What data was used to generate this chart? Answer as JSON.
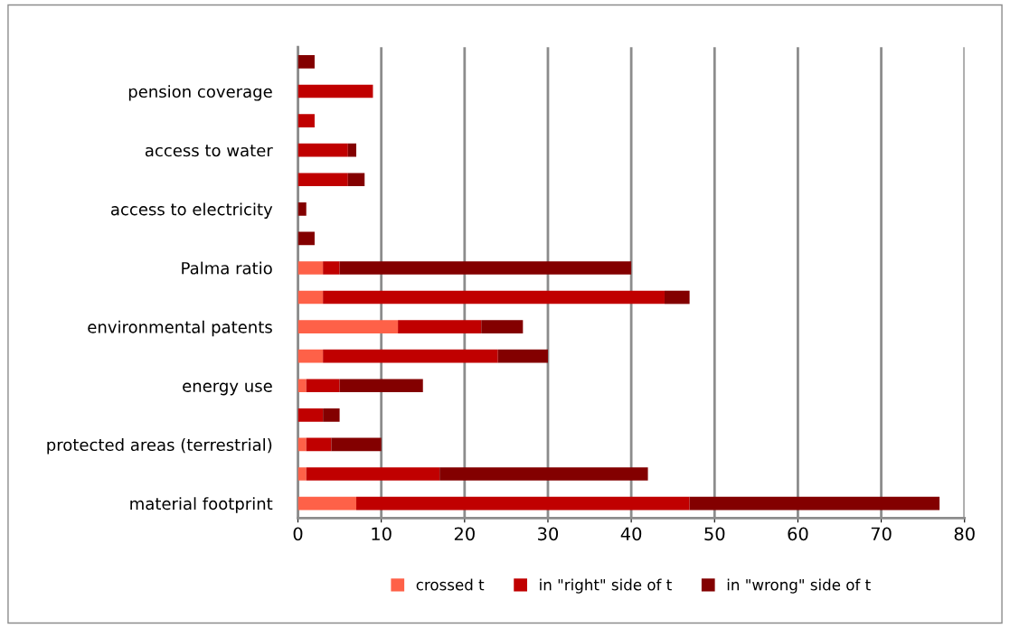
{
  "chart_data": {
    "type": "bar",
    "orientation": "horizontal",
    "stacked": true,
    "categories": [
      null,
      "pension coverage",
      null,
      "access to water",
      null,
      "access to electricity",
      null,
      "Palma ratio",
      null,
      "environmental patents",
      null,
      "energy use",
      null,
      "protected areas (terrestrial)",
      null,
      "material footprint"
    ],
    "series": [
      {
        "name": "crossed t",
        "color": "#fe6148",
        "values": [
          0,
          0,
          0,
          0,
          0,
          0,
          0,
          3,
          3,
          12,
          3,
          1,
          0,
          1,
          1,
          7
        ]
      },
      {
        "name": "in \"right\" side of t",
        "color": "#c00000",
        "values": [
          0,
          9,
          2,
          6,
          6,
          0,
          0,
          2,
          41,
          10,
          21,
          4,
          3,
          3,
          16,
          40
        ]
      },
      {
        "name": "in \"wrong\" side of t",
        "color": "#830000",
        "values": [
          2,
          0,
          0,
          1,
          2,
          1,
          2,
          35,
          3,
          5,
          6,
          10,
          2,
          6,
          25,
          30
        ]
      }
    ],
    "xlim": [
      0,
      80
    ],
    "xticks": [
      0,
      10,
      20,
      30,
      40,
      50,
      60,
      70,
      80
    ],
    "grid": "x",
    "legend": "bottom"
  }
}
